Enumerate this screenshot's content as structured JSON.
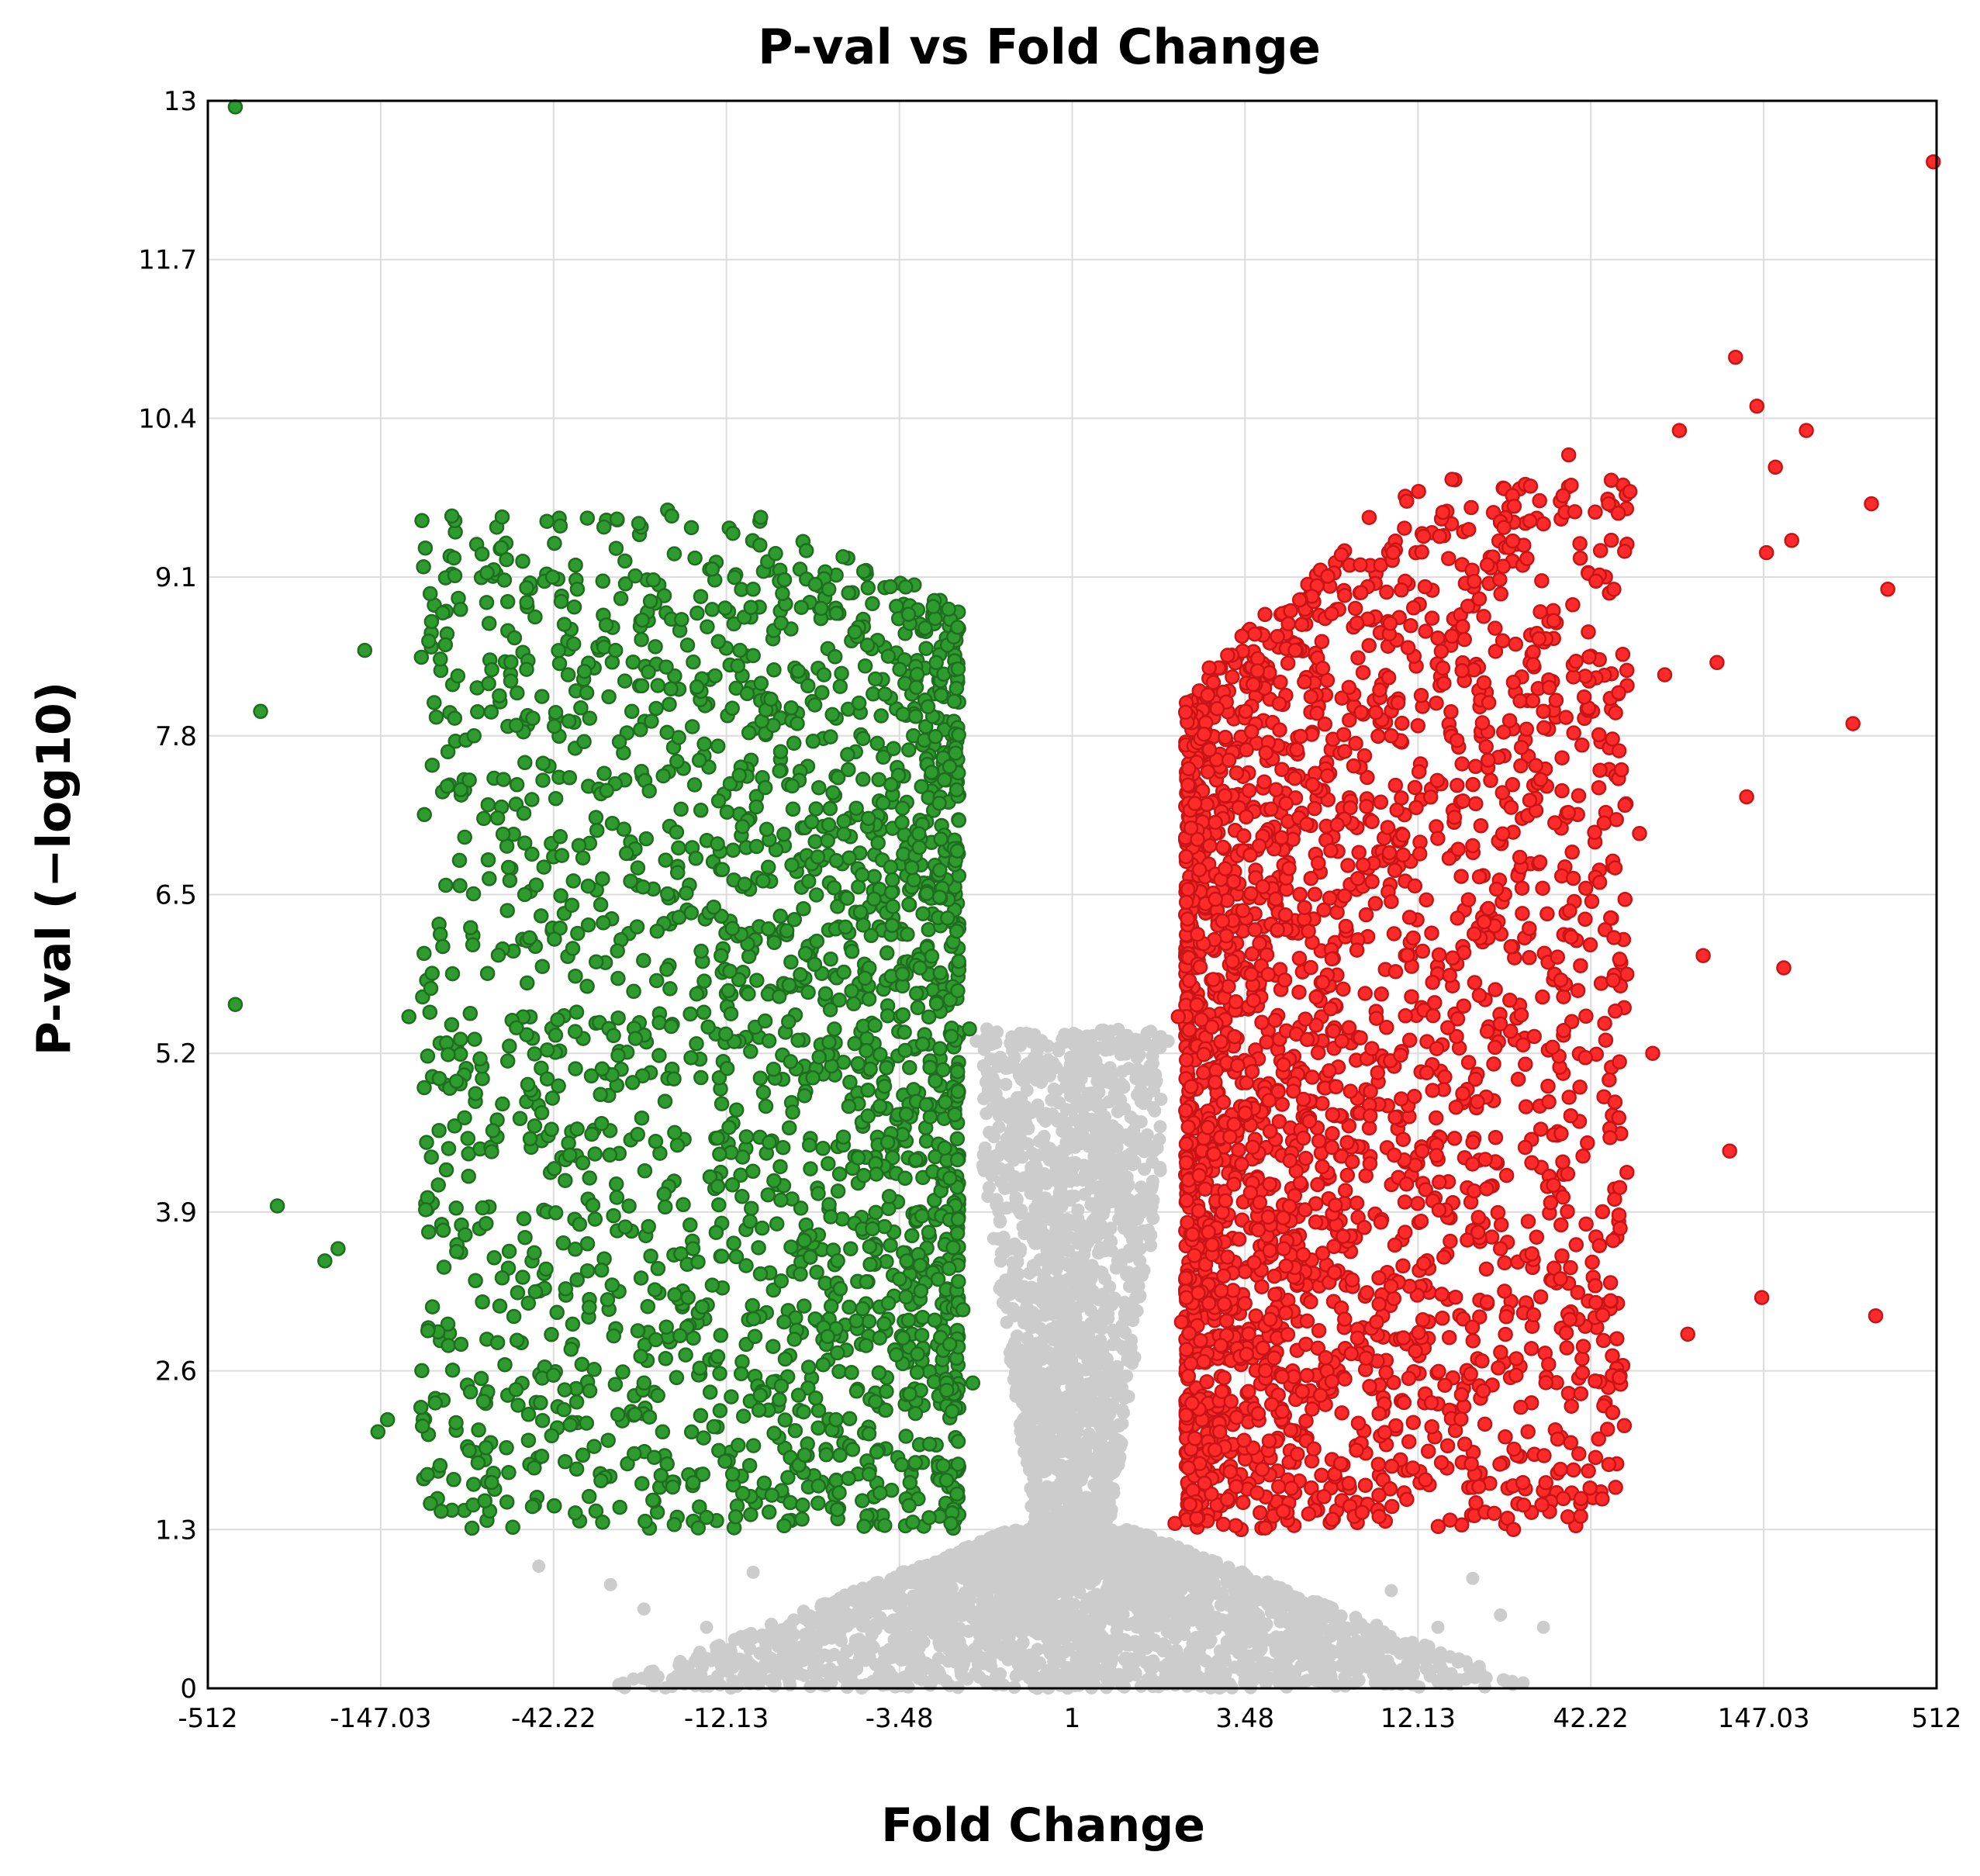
{
  "chart_data": {
    "type": "scatter",
    "title": "P-val vs Fold Change",
    "xlabel": "Fold Change",
    "ylabel": "P-val (−log10)",
    "x_scale": "log2",
    "xlim": [
      -512,
      512
    ],
    "ylim": [
      0,
      13
    ],
    "x_ticks": [
      "-512",
      "-147.03",
      "-42.22",
      "-12.13",
      "-3.48",
      "1",
      "3.48",
      "12.13",
      "42.22",
      "147.03",
      "512"
    ],
    "x_tick_values": [
      -512,
      -147.03,
      -42.22,
      -12.13,
      -3.48,
      1,
      3.48,
      12.13,
      42.22,
      147.03,
      512
    ],
    "y_ticks": [
      "0",
      "1.3",
      "2.6",
      "3.9",
      "5.2",
      "6.5",
      "7.8",
      "9.1",
      "10.4",
      "11.7",
      "13"
    ],
    "y_tick_values": [
      0,
      1.3,
      2.6,
      3.9,
      5.2,
      6.5,
      7.8,
      9.1,
      10.4,
      11.7,
      13
    ],
    "grid": true,
    "legend": "none",
    "colors": {
      "down": "#2e9b2e",
      "down_edge": "#1f6e1f",
      "up": "#ff2a2a",
      "up_edge": "#c81414",
      "not_significant": "#cccccc"
    },
    "series": [
      {
        "color": "#2e9b2e",
        "points": [
          [
            -420,
            12.95
          ],
          [
            -350,
            8.0
          ],
          [
            -420,
            5.6
          ],
          [
            -310,
            3.95
          ],
          [
            -220,
            3.5
          ],
          [
            -200,
            3.6
          ],
          [
            -165,
            8.5
          ],
          [
            -150,
            2.1
          ],
          [
            -140,
            2.2
          ],
          [
            -120,
            5.5
          ],
          [
            -110,
            2.3
          ],
          [
            -105,
            1.75
          ],
          [
            -102,
            4.35
          ],
          [
            -95,
            1.45
          ],
          [
            -88,
            9.6
          ],
          [
            -75,
            7.8
          ],
          [
            -70,
            2.35
          ],
          [
            -60,
            2.65
          ],
          [
            -55,
            7.4
          ],
          [
            -52,
            6.5
          ],
          [
            -50,
            4.5
          ],
          [
            -46,
            1.9
          ],
          [
            -42.5,
            9.1
          ],
          [
            -40,
            8.9
          ],
          [
            -38,
            8.3
          ],
          [
            -35,
            3.8
          ],
          [
            -30,
            1.7
          ],
          [
            -27,
            8.5
          ],
          [
            -24,
            8.0
          ],
          [
            -22,
            2.5
          ],
          [
            -20,
            6.2
          ],
          [
            -18,
            9.6
          ],
          [
            -16,
            3.2
          ],
          [
            -15,
            8.2
          ],
          [
            -14,
            1.4
          ],
          [
            -12.6,
            6.0
          ],
          [
            -11,
            8.5
          ],
          [
            -10,
            9.0
          ],
          [
            -9.5,
            2.4
          ],
          [
            -8.8,
            8.1
          ],
          [
            -8,
            3.0
          ],
          [
            -7.5,
            7.2
          ],
          [
            -7,
            1.5
          ],
          [
            -6.5,
            5.0
          ],
          [
            -6,
            8.3
          ],
          [
            -5.5,
            2.2
          ],
          [
            -5,
            6.8
          ],
          [
            -4.5,
            4.2
          ],
          [
            -4,
            1.6
          ],
          [
            -3.7,
            7.4
          ],
          [
            -3.3,
            3.5
          ],
          [
            -3,
            5.9
          ],
          [
            -2.8,
            2.0
          ],
          [
            -2.6,
            6.7
          ],
          [
            -2.5,
            4.8
          ],
          [
            -2.4,
            1.35
          ],
          [
            -2.3,
            6.2
          ],
          [
            -2.2,
            3.1
          ],
          [
            -2.1,
            5.4
          ],
          [
            -2.05,
            2.5
          ]
        ]
      },
      {
        "color": "#ff2a2a",
        "points": [
          [
            2.1,
            1.35
          ],
          [
            2.15,
            5.5
          ],
          [
            2.2,
            3.0
          ],
          [
            2.3,
            6.3
          ],
          [
            2.5,
            4.2
          ],
          [
            2.7,
            6.9
          ],
          [
            2.9,
            2.1
          ],
          [
            3.1,
            7.6
          ],
          [
            3.3,
            5.1
          ],
          [
            3.5,
            8.0
          ],
          [
            3.8,
            1.6
          ],
          [
            4.2,
            7.2
          ],
          [
            4.6,
            3.6
          ],
          [
            5.0,
            8.5
          ],
          [
            5.5,
            6.2
          ],
          [
            6,
            2.4
          ],
          [
            6.5,
            8.8
          ],
          [
            7,
            5.3
          ],
          [
            8,
            9.2
          ],
          [
            9,
            3.0
          ],
          [
            10,
            7.8
          ],
          [
            11,
            9.5
          ],
          [
            12.5,
            4.4
          ],
          [
            14,
            8.6
          ],
          [
            15.5,
            9.9
          ],
          [
            17,
            2.0
          ],
          [
            18,
            6.9
          ],
          [
            20,
            9.2
          ],
          [
            22,
            3.6
          ],
          [
            24,
            7.4
          ],
          [
            26,
            1.5
          ],
          [
            30,
            8.0
          ],
          [
            34,
            5.8
          ],
          [
            36,
            10.1
          ],
          [
            40,
            2.8
          ],
          [
            45,
            6.6
          ],
          [
            48,
            9.7
          ],
          [
            52,
            4.1
          ],
          [
            56,
            9.8
          ],
          [
            60,
            7.0
          ],
          [
            66,
            5.2
          ],
          [
            72,
            8.3
          ],
          [
            80,
            10.3
          ],
          [
            85,
            2.9
          ],
          [
            95,
            6.0
          ],
          [
            105,
            8.4
          ],
          [
            115,
            4.4
          ],
          [
            120,
            10.9
          ],
          [
            130,
            7.3
          ],
          [
            140,
            10.5
          ],
          [
            145,
            3.2
          ],
          [
            150,
            9.3
          ],
          [
            160,
            10.0
          ],
          [
            170,
            5.9
          ],
          [
            180,
            9.4
          ],
          [
            200,
            10.3
          ],
          [
            280,
            7.9
          ],
          [
            320,
            9.7
          ],
          [
            330,
            3.05
          ],
          [
            360,
            9.0
          ],
          [
            500,
            12.5
          ]
        ]
      },
      {
        "color": "#cccccc",
        "points": [
          [
            -2,
            5.3
          ],
          [
            -1.8,
            4.3
          ],
          [
            -1.6,
            3.3
          ],
          [
            -1.45,
            2.5
          ],
          [
            -1.3,
            1.7
          ],
          [
            -1.15,
            1.0
          ],
          [
            1.1,
            0.9
          ],
          [
            1.25,
            1.6
          ],
          [
            1.4,
            2.4
          ],
          [
            1.6,
            3.4
          ],
          [
            1.8,
            4.4
          ],
          [
            2,
            5.3
          ],
          [
            -47,
            1.0
          ],
          [
            -28,
            0.85
          ],
          [
            -22,
            0.65
          ],
          [
            -14,
            0.5
          ],
          [
            -10,
            0.95
          ],
          [
            -6,
            0.4
          ],
          [
            -3,
            0.2
          ],
          [
            -1.5,
            0.1
          ],
          [
            1.5,
            0.1
          ],
          [
            3,
            0.3
          ],
          [
            6,
            0.55
          ],
          [
            10,
            0.8
          ],
          [
            14,
            0.5
          ],
          [
            18,
            0.9
          ],
          [
            22,
            0.6
          ],
          [
            30,
            0.5
          ]
        ]
      }
    ]
  }
}
